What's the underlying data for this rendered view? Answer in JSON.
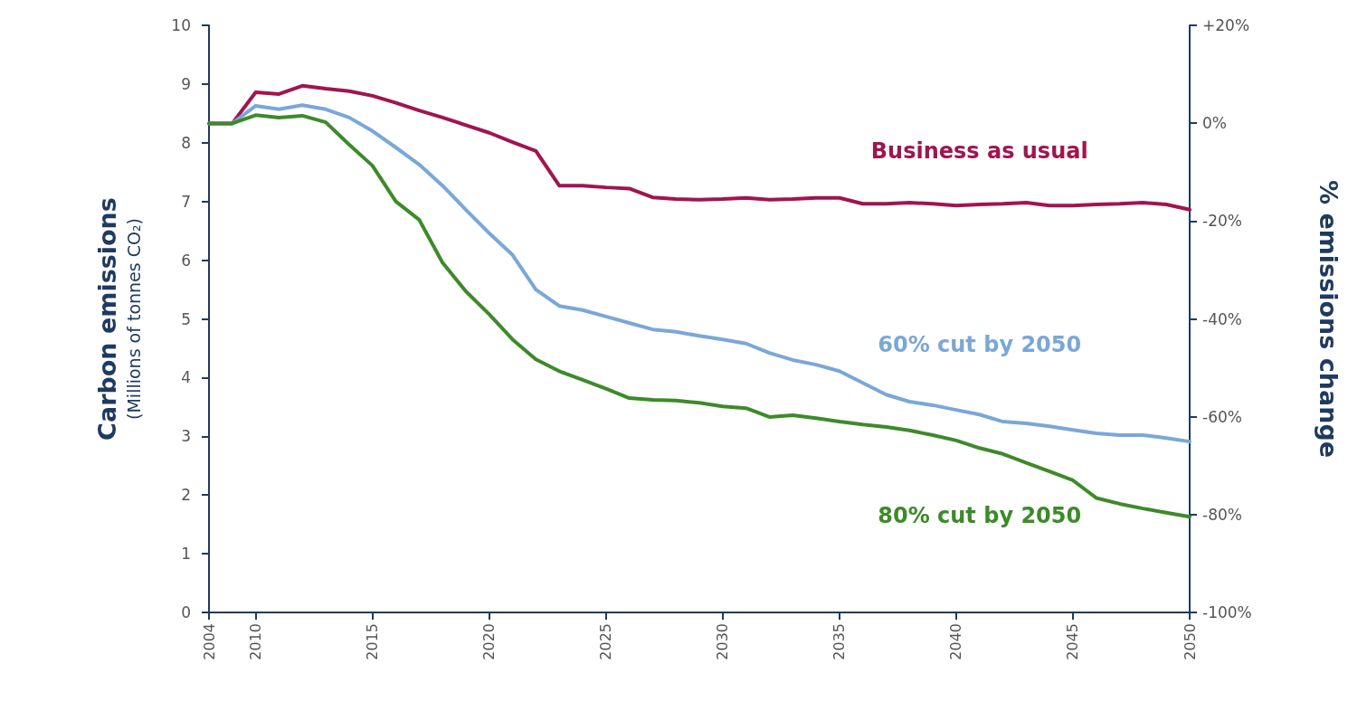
{
  "chart_data": {
    "type": "line",
    "ylabel": "Carbon emissions\n(Millions of tonnes CO₂)",
    "y2label": "% emissions change",
    "categories": [
      "2004",
      null,
      "2010",
      null,
      null,
      null,
      null,
      "2015",
      null,
      null,
      null,
      null,
      "2020",
      null,
      null,
      null,
      null,
      "2025",
      null,
      null,
      null,
      null,
      "2030",
      null,
      null,
      null,
      null,
      "2035",
      null,
      null,
      null,
      null,
      "2040",
      null,
      null,
      null,
      null,
      "2045",
      null,
      null,
      null,
      null,
      "2050"
    ],
    "series": [
      {
        "name": "Business as usual",
        "color": "#a0154f",
        "values": [
          8.33,
          8.33,
          8.86,
          8.83,
          8.97,
          8.92,
          8.88,
          8.8,
          8.68,
          8.55,
          8.43,
          8.3,
          8.17,
          8.01,
          7.86,
          7.27,
          7.27,
          7.24,
          7.22,
          7.07,
          7.04,
          7.03,
          7.04,
          7.06,
          7.03,
          7.04,
          7.06,
          7.06,
          6.96,
          6.96,
          6.98,
          6.96,
          6.93,
          6.95,
          6.96,
          6.98,
          6.93,
          6.93,
          6.95,
          6.96,
          6.98,
          6.95,
          6.86
        ]
      },
      {
        "name": "60% cut by 2050",
        "color": "#7aa7d8",
        "values": [
          8.33,
          8.33,
          8.63,
          8.57,
          8.64,
          8.57,
          8.43,
          8.2,
          7.92,
          7.63,
          7.27,
          6.86,
          6.46,
          6.09,
          5.5,
          5.22,
          5.15,
          5.04,
          4.93,
          4.82,
          4.78,
          4.71,
          4.65,
          4.58,
          4.42,
          4.3,
          4.22,
          4.11,
          3.91,
          3.71,
          3.59,
          3.53,
          3.45,
          3.37,
          3.25,
          3.22,
          3.17,
          3.11,
          3.05,
          3.02,
          3.02,
          2.97,
          2.91
        ]
      },
      {
        "name": "80% cut by 2050",
        "color": "#3d8a2a",
        "values": [
          8.33,
          8.33,
          8.47,
          8.43,
          8.46,
          8.35,
          7.97,
          7.61,
          7.0,
          6.69,
          5.96,
          5.47,
          5.08,
          4.65,
          4.31,
          4.11,
          3.96,
          3.81,
          3.65,
          3.62,
          3.61,
          3.57,
          3.51,
          3.48,
          3.33,
          3.36,
          3.31,
          3.25,
          3.2,
          3.16,
          3.1,
          3.02,
          2.93,
          2.8,
          2.7,
          2.55,
          2.4,
          2.25,
          1.95,
          1.85,
          1.77,
          1.7,
          1.63
        ]
      }
    ],
    "ylim": [
      0,
      10
    ],
    "yticks": [
      0,
      1,
      2,
      3,
      4,
      5,
      6,
      7,
      8,
      9,
      10
    ],
    "y2lim": [
      -100,
      20
    ],
    "y2ticks": [
      {
        "value": -100,
        "label": "-100%"
      },
      {
        "value": -80,
        "label": "-80%"
      },
      {
        "value": -60,
        "label": "-60%"
      },
      {
        "value": -40,
        "label": "-40%"
      },
      {
        "value": -20,
        "label": "-20%"
      },
      {
        "value": 0,
        "label": "0%"
      },
      {
        "value": 20,
        "label": "+20%"
      }
    ],
    "grid": false,
    "legend": false,
    "marker": "none",
    "line_style": "solid"
  }
}
